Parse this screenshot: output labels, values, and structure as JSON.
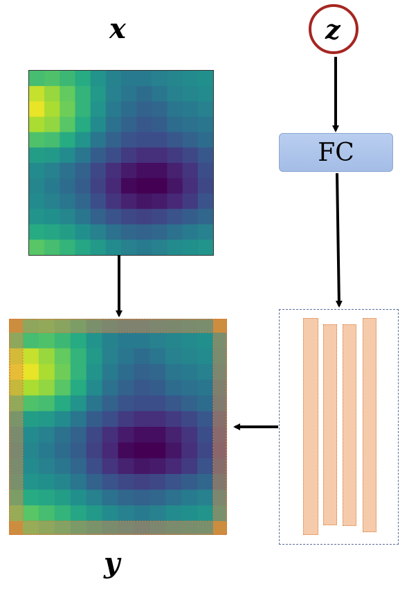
{
  "labels": {
    "x": "x",
    "y": "y",
    "z": "z",
    "fc": "FC"
  },
  "colors": {
    "circle": "#a52622",
    "fc_fill": "#a4bde6",
    "band_fill": "#f5cbab",
    "band_border": "#d87a3a",
    "arrow": "#000000"
  },
  "heatmap": {
    "colormap": "viridis",
    "rows": 12,
    "cols": 12,
    "values": [
      [
        0.7,
        0.72,
        0.68,
        0.62,
        0.52,
        0.45,
        0.42,
        0.42,
        0.44,
        0.46,
        0.48,
        0.5
      ],
      [
        0.92,
        0.85,
        0.76,
        0.66,
        0.54,
        0.44,
        0.4,
        0.36,
        0.4,
        0.44,
        0.46,
        0.48
      ],
      [
        0.97,
        0.88,
        0.78,
        0.66,
        0.52,
        0.42,
        0.36,
        0.32,
        0.34,
        0.4,
        0.42,
        0.44
      ],
      [
        0.88,
        0.84,
        0.74,
        0.62,
        0.48,
        0.38,
        0.32,
        0.28,
        0.3,
        0.36,
        0.38,
        0.4
      ],
      [
        0.72,
        0.7,
        0.62,
        0.52,
        0.4,
        0.32,
        0.26,
        0.24,
        0.24,
        0.28,
        0.32,
        0.36
      ],
      [
        0.56,
        0.54,
        0.48,
        0.4,
        0.3,
        0.24,
        0.18,
        0.14,
        0.14,
        0.18,
        0.22,
        0.28
      ],
      [
        0.48,
        0.44,
        0.38,
        0.32,
        0.22,
        0.14,
        0.08,
        0.04,
        0.04,
        0.1,
        0.16,
        0.24
      ],
      [
        0.46,
        0.42,
        0.36,
        0.3,
        0.2,
        0.12,
        0.02,
        0.0,
        0.0,
        0.06,
        0.14,
        0.22
      ],
      [
        0.48,
        0.44,
        0.4,
        0.34,
        0.24,
        0.16,
        0.1,
        0.06,
        0.08,
        0.12,
        0.18,
        0.26
      ],
      [
        0.52,
        0.5,
        0.46,
        0.4,
        0.32,
        0.26,
        0.22,
        0.2,
        0.22,
        0.26,
        0.3,
        0.34
      ],
      [
        0.62,
        0.6,
        0.56,
        0.5,
        0.44,
        0.38,
        0.34,
        0.32,
        0.34,
        0.38,
        0.42,
        0.44
      ],
      [
        0.74,
        0.7,
        0.66,
        0.6,
        0.54,
        0.48,
        0.44,
        0.42,
        0.44,
        0.48,
        0.5,
        0.52
      ]
    ]
  }
}
